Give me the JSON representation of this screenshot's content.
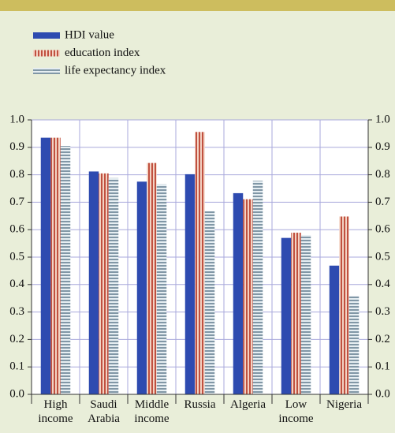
{
  "chart_data": {
    "type": "bar",
    "categories": [
      "High income",
      "Saudi Arabia",
      "Middle income",
      "Russia",
      "Algeria",
      "Low income",
      "Nigeria"
    ],
    "series": [
      {
        "name": "HDI value",
        "color": "#2e4bb0",
        "values": [
          0.935,
          0.812,
          0.775,
          0.802,
          0.733,
          0.57,
          0.469
        ]
      },
      {
        "name": "education index",
        "color": "#c0503f",
        "values": [
          0.935,
          0.805,
          0.843,
          0.956,
          0.711,
          0.589,
          0.648
        ]
      },
      {
        "name": "life expectancy index",
        "color": "#8197a6",
        "values": [
          0.905,
          0.788,
          0.765,
          0.667,
          0.778,
          0.58,
          0.358
        ]
      }
    ],
    "ylim": [
      0,
      1
    ],
    "yticks": [
      {
        "value": 0,
        "label": "0.0"
      },
      0.1,
      0.2,
      0.3,
      0.4,
      0.5,
      0.6,
      0.7,
      0.8,
      0.9,
      {
        "value": 1,
        "label": "1.0"
      }
    ],
    "grid": true
  }
}
